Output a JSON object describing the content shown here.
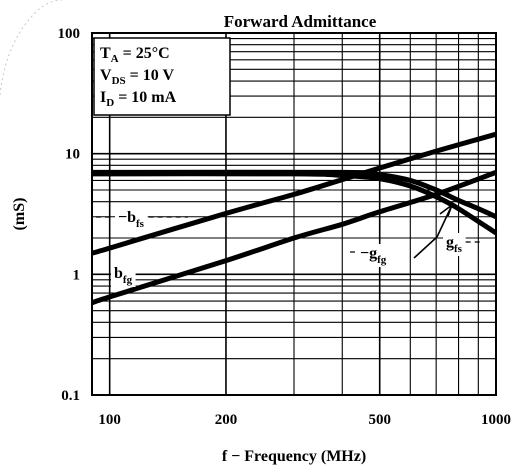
{
  "chart_data": {
    "type": "line",
    "title": "Forward Admittance",
    "xlabel": "f − Frequency (MHz)",
    "ylabel": "(mS)",
    "x_scale": "log",
    "y_scale": "log",
    "xlim": [
      90,
      1000
    ],
    "ylim": [
      0.1,
      100
    ],
    "x_ticks": [
      100,
      200,
      500,
      1000
    ],
    "x_tick_labels": [
      "100",
      "200",
      "500",
      "1000"
    ],
    "y_ticks": [
      0.1,
      1,
      10,
      100
    ],
    "y_tick_labels": [
      "0.1",
      "1",
      "10",
      "100"
    ],
    "grid": true,
    "conditions": [
      {
        "main": "T",
        "sub": "A",
        "rest": " = 25°C"
      },
      {
        "main": "V",
        "sub": "DS",
        "rest": " = 10 V"
      },
      {
        "main": "I",
        "sub": "D",
        "rest": " = 10 mA"
      }
    ],
    "series": [
      {
        "name": "−b",
        "sub": "fs",
        "x": [
          90,
          100,
          200,
          300,
          400,
          500,
          700,
          1000
        ],
        "y": [
          1.5,
          1.65,
          3.2,
          4.6,
          6.1,
          7.6,
          10.5,
          14.5
        ]
      },
      {
        "name": "b",
        "sub": "fg",
        "x": [
          90,
          100,
          200,
          300,
          400,
          500,
          700,
          1000
        ],
        "y": [
          0.58,
          0.65,
          1.3,
          2.0,
          2.6,
          3.3,
          4.6,
          7.0
        ]
      },
      {
        "name": "−g",
        "sub": "fg",
        "x": [
          90,
          300,
          400,
          500,
          600,
          700,
          800,
          1000
        ],
        "y": [
          6.8,
          6.8,
          6.6,
          6.2,
          5.4,
          4.4,
          3.5,
          2.2
        ]
      },
      {
        "name": "g",
        "sub": "fs",
        "x": [
          90,
          400,
          500,
          600,
          700,
          800,
          900,
          1000
        ],
        "y": [
          7.0,
          7.0,
          6.7,
          6.0,
          5.0,
          4.1,
          3.5,
          3.0
        ]
      }
    ]
  }
}
